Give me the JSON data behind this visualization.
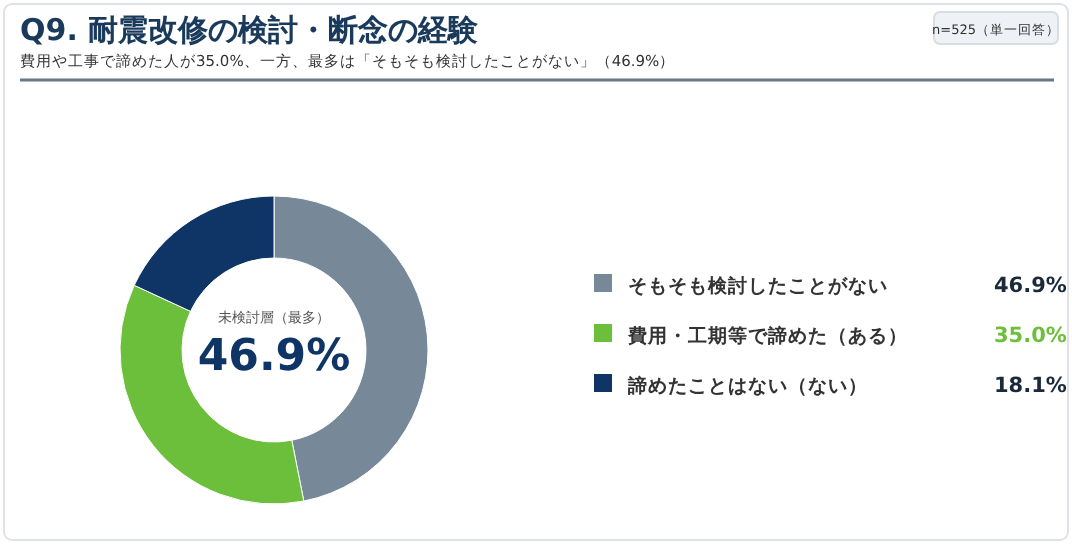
{
  "chart_data": {
    "type": "donut",
    "title": "Q9. 耐震改修の検討・断念の経験",
    "subtitle": "費用や工事で諦めた人が35.0%、一方、最多は「そもそも検討したことがない」（46.9%）",
    "categories": [
      "そもそも検討したことがない",
      "費用・工期等で諦めた（ある）",
      "諦めたことはない（ない）"
    ],
    "values": [
      46.9,
      35.0,
      18.1
    ],
    "colors": [
      "#778899",
      "#6cbf3a",
      "#0f3566"
    ],
    "annotations": [
      "n=525（単一回答）",
      "未検討層（最多）",
      "46.9%"
    ],
    "value_labels": [
      "46.9%",
      "35.0%",
      "18.1%"
    ],
    "legend": "right"
  }
}
